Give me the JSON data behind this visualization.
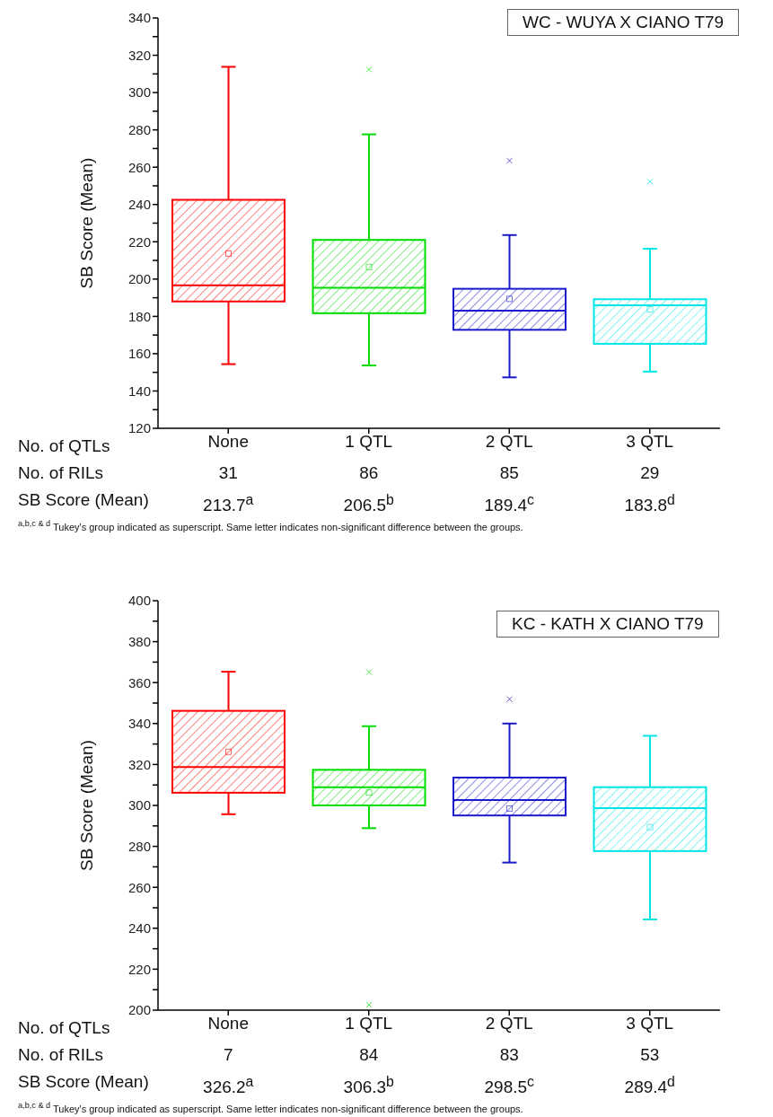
{
  "chart_data": [
    {
      "type": "box",
      "title": "WC - WUYA X CIANO T79",
      "ylabel": "SB Score (Mean)",
      "xlabel": "No. of QTLs",
      "categories": [
        "None",
        "1 QTL",
        "2 QTL",
        "3 QTL"
      ],
      "colors": [
        "#ff0000",
        "#00dd00",
        "#1a1acc",
        "#00e5e5"
      ],
      "boxes": [
        {
          "low": 154.4,
          "q1": 188.0,
          "median": 196.7,
          "q3": 242.5,
          "high": 313.8,
          "mean": 213.7
        },
        {
          "low": 153.7,
          "q1": 181.7,
          "median": 195.3,
          "q3": 221.0,
          "high": 277.6,
          "mean": 206.5,
          "outliers": [
            312.4
          ]
        },
        {
          "low": 147.3,
          "q1": 172.8,
          "median": 183.1,
          "q3": 194.8,
          "high": 223.6,
          "mean": 189.4,
          "outliers": [
            263.5
          ]
        },
        {
          "low": 150.4,
          "q1": 165.3,
          "median": 185.9,
          "q3": 189.2,
          "high": 216.3,
          "mean": 183.8,
          "outliers": [
            252.3
          ]
        }
      ],
      "ylim": [
        120,
        340
      ],
      "yticks": [
        120,
        {
          "value": 130,
          "label": null
        },
        140,
        {
          "value": 150,
          "label": null
        },
        160,
        {
          "value": 170,
          "label": null
        },
        180,
        {
          "value": 190,
          "label": null
        },
        200,
        {
          "value": 210,
          "label": null
        },
        220,
        {
          "value": 230,
          "label": null
        },
        240,
        {
          "value": 250,
          "label": null
        },
        260,
        {
          "value": 270,
          "label": null
        },
        280,
        {
          "value": 290,
          "label": null
        },
        300,
        {
          "value": 310,
          "label": null
        },
        320,
        {
          "value": 330,
          "label": null
        },
        340
      ],
      "annotations": [
        "No. of RILs",
        "31",
        "86",
        "85",
        "29",
        "SB Score (Mean)",
        "213.7$^{a}$",
        "206.5$^{b}$",
        "189.4$^{c}$",
        "183.8$^{d}$",
        "$^{a,b,c & d}$ Tukey's group indicated as superscript. Same letter indicates non-significant difference between the groups."
      ]
    },
    {
      "type": "box",
      "title": "KC - KATH X CIANO T79",
      "ylabel": "SB Score (Mean)",
      "xlabel": "No. of QTLs",
      "categories": [
        "None",
        "1 QTL",
        "2 QTL",
        "3 QTL"
      ],
      "colors": [
        "#ff0000",
        "#00dd00",
        "#1a1acc",
        "#00e5e5"
      ],
      "boxes": [
        {
          "low": 295.7,
          "q1": 306.2,
          "median": 318.7,
          "q3": 346.2,
          "high": 365.3,
          "mean": 326.2
        },
        {
          "low": 288.9,
          "q1": 300.0,
          "median": 308.9,
          "q3": 317.4,
          "high": 338.7,
          "mean": 306.3,
          "outliers": [
            365.1,
            202.6
          ]
        },
        {
          "low": 272.1,
          "q1": 295.1,
          "median": 302.6,
          "q3": 313.6,
          "high": 340.0,
          "mean": 298.5,
          "outliers": [
            351.9
          ]
        },
        {
          "low": 244.3,
          "q1": 277.7,
          "median": 298.7,
          "q3": 308.9,
          "high": 334.0,
          "mean": 289.4
        }
      ],
      "ylim": [
        200,
        400
      ],
      "yticks": [
        200,
        {
          "value": 210,
          "label": null
        },
        220,
        {
          "value": 230,
          "label": null
        },
        240,
        {
          "value": 250,
          "label": null
        },
        260,
        {
          "value": 270,
          "label": null
        },
        280,
        {
          "value": 290,
          "label": null
        },
        300,
        {
          "value": 310,
          "label": null
        },
        320,
        {
          "value": 330,
          "label": null
        },
        340,
        {
          "value": 350,
          "label": null
        },
        360,
        {
          "value": 370,
          "label": null
        },
        380,
        {
          "value": 390,
          "label": null
        },
        400
      ],
      "annotations": [
        "No. of RILs",
        "7",
        "84",
        "83",
        "53",
        "SB Score (Mean)",
        "326.2$^{a}$",
        "306.3$^{b}$",
        "298.5$^{c}$",
        "289.4$^{d}$",
        "$^{a,b,c & d}$ Tukey's group indicated as superscript. Same letter indicates non-significant difference between the groups."
      ]
    }
  ]
}
